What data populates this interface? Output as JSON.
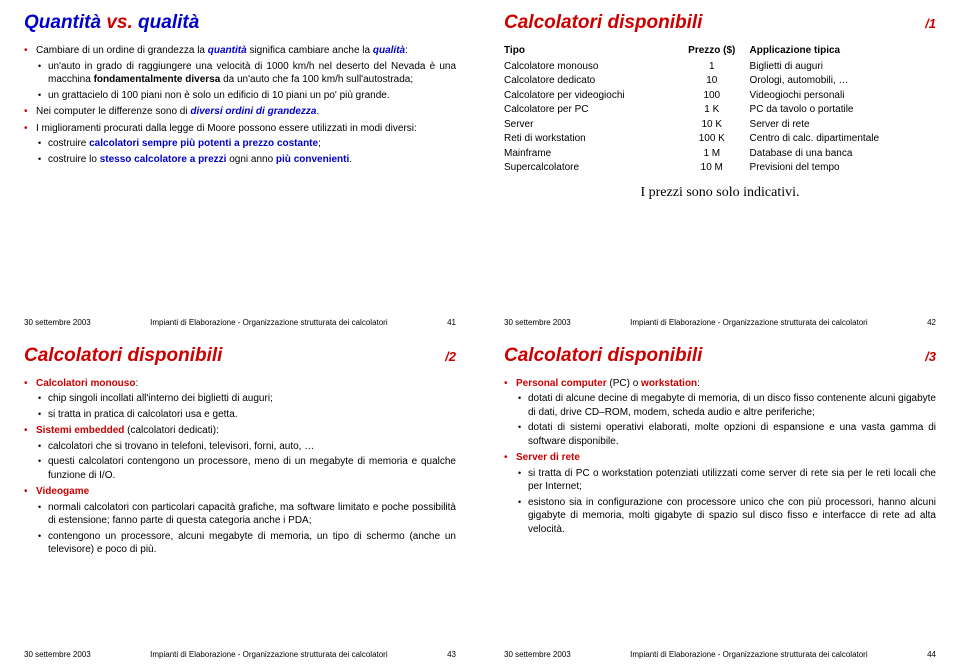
{
  "colors": {
    "blue": "#0000cc",
    "red": "#cc0000",
    "text": "#000000",
    "bg": "#ffffff"
  },
  "footer": {
    "date": "30 settembre 2003",
    "course": "Impianti di Elaborazione - Organizzazione strutturata dei calcolatori"
  },
  "s1": {
    "title_a": "Quantità",
    "title_vs": " vs. ",
    "title_b": "qualità",
    "li1_a": "Cambiare di un ordine di grandezza la ",
    "li1_b": "quantità",
    "li1_c": " significa cambiare anche la ",
    "li1_d": "qualità",
    "li1_e": ":",
    "li1s1_a": "un'auto in grado di raggiungere una velocità di 1000 km/h nel deserto del Nevada è una macchina ",
    "li1s1_b": "fondamentalmente diversa",
    "li1s1_c": " da un'auto che fa 100 km/h sull'autostrada;",
    "li1s2": "un grattacielo di 100 piani non è solo un edificio di 10 piani un po' più grande.",
    "li2_a": "Nei computer le differenze sono di ",
    "li2_b": "diversi ordini di grandezza",
    "li2_c": ".",
    "li3": "I miglioramenti procurati dalla legge di Moore possono essere utilizzati in modi diversi:",
    "li3s1_a": "costruire ",
    "li3s1_b": "calcolatori sempre più potenti a prezzo costante",
    "li3s1_c": ";",
    "li3s2_a": "costruire lo ",
    "li3s2_b": "stesso calcolatore a prezzi",
    "li3s2_c": " ogni anno ",
    "li3s2_d": "più convenienti",
    "li3s2_e": ".",
    "page": "41"
  },
  "s2": {
    "title": "Calcolatori disponibili",
    "part": "/1",
    "cols": {
      "a": "Tipo",
      "b": "Prezzo ($)",
      "c": "Applicazione tipica"
    },
    "rows": [
      {
        "a": "Calcolatore monouso",
        "b": "1",
        "c": "Biglietti di auguri"
      },
      {
        "a": "Calcolatore dedicato",
        "b": "10",
        "c": "Orologi, automobili, …"
      },
      {
        "a": "Calcolatore per videogiochi",
        "b": "100",
        "c": "Videogiochi personali"
      },
      {
        "a": "Calcolatore per PC",
        "b": "1 K",
        "c": "PC da tavolo o portatile"
      },
      {
        "a": "Server",
        "b": "10 K",
        "c": "Server di rete"
      },
      {
        "a": "Reti di workstation",
        "b": "100 K",
        "c": "Centro di calc. dipartimentale"
      },
      {
        "a": "Mainframe",
        "b": "1 M",
        "c": "Database di una banca"
      },
      {
        "a": "Supercalcolatore",
        "b": "10 M",
        "c": "Previsioni del tempo"
      }
    ],
    "note": "I prezzi sono solo indicativi.",
    "page": "42"
  },
  "s3": {
    "title": "Calcolatori disponibili",
    "part": "/2",
    "h1": "Calcolatori monouso",
    "h1p": ":",
    "h1s1": "chip singoli incollati all'interno dei biglietti di auguri;",
    "h1s2": "si tratta in pratica di calcolatori usa e getta.",
    "h2": "Sistemi embedded",
    "h2p": " (calcolatori dedicati):",
    "h2s1": "calcolatori che si trovano in telefoni, televisori, forni, auto, …",
    "h2s2": "questi calcolatori contengono un processore, meno di un megabyte di memoria e qualche funzione di I/O.",
    "h3": "Videogame",
    "h3s1": "normali calcolatori con particolari capacità grafiche, ma software limitato e poche possibilità di estensione; fanno parte di questa categoria anche i PDA;",
    "h3s2": "contengono un processore, alcuni megabyte di memoria, un tipo di schermo (anche un televisore) e poco di più.",
    "page": "43"
  },
  "s4": {
    "title": "Calcolatori disponibili",
    "part": "/3",
    "h1a": "Personal computer",
    "h1b": " (PC) o ",
    "h1c": "workstation",
    "h1p": ":",
    "h1s1": "dotati di alcune decine di megabyte di memoria, di un disco fisso contenente alcuni gigabyte di dati, drive CD–ROM, modem, scheda audio e altre periferiche;",
    "h1s2": "dotati di sistemi operativi elaborati, molte opzioni di espansione e una vasta gamma di software disponibile.",
    "h2": "Server di rete",
    "h2s1": "si tratta di PC o workstation potenziati utilizzati come server di rete sia per le reti locali che per Internet;",
    "h2s2": "esistono sia in configurazione con processore unico che con più processori, hanno alcuni gigabyte di memoria, molti gigabyte di spazio sul disco fisso e interfacce di rete ad alta velocità.",
    "page": "44"
  }
}
